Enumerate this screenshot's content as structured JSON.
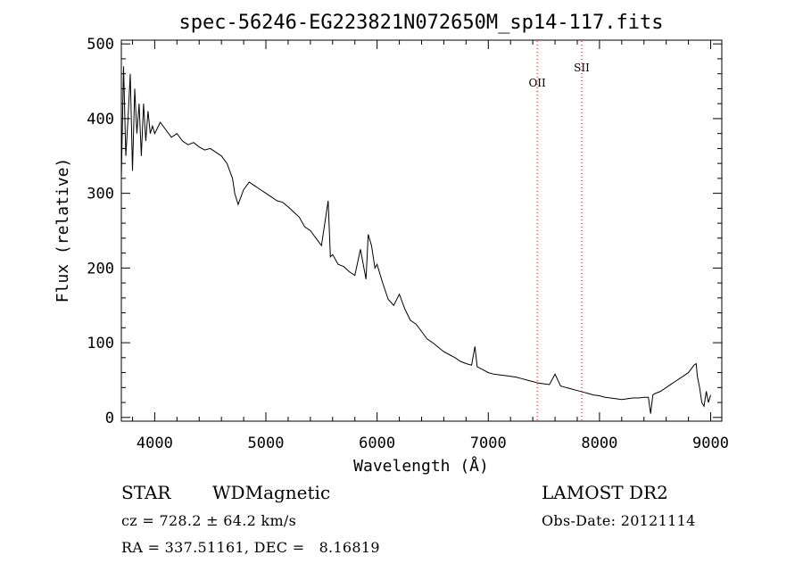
{
  "chart_data": {
    "type": "line",
    "title": "spec-56246-EG223821N072650M_sp14-117.fits",
    "xlabel": "Wavelength (Å)",
    "ylabel": "Flux (relative)",
    "xlim": [
      3700,
      9100
    ],
    "ylim": [
      -5,
      505
    ],
    "x_ticks": [
      4000,
      5000,
      6000,
      7000,
      8000,
      9000
    ],
    "y_ticks": [
      0,
      100,
      200,
      300,
      400,
      500
    ],
    "grid": false,
    "line_color": "#000000",
    "series": [
      {
        "x": [
          3700,
          3720,
          3740,
          3760,
          3780,
          3800,
          3820,
          3840,
          3860,
          3880,
          3900,
          3920,
          3940,
          3960,
          3980,
          4000,
          4050,
          4100,
          4150,
          4200,
          4250,
          4300,
          4350,
          4400,
          4450,
          4500,
          4550,
          4600,
          4650,
          4700,
          4720,
          4750,
          4800,
          4850,
          4900,
          4950,
          5000,
          5050,
          5100,
          5150,
          5200,
          5250,
          5300,
          5350,
          5400,
          5450,
          5500,
          5560,
          5580,
          5600,
          5650,
          5700,
          5750,
          5800,
          5850,
          5900,
          5920,
          5950,
          5980,
          6000,
          6050,
          6100,
          6150,
          6200,
          6250,
          6300,
          6350,
          6400,
          6450,
          6500,
          6550,
          6600,
          6650,
          6700,
          6750,
          6800,
          6850,
          6880,
          6900,
          6950,
          7000,
          7050,
          7100,
          7150,
          7200,
          7250,
          7300,
          7350,
          7400,
          7450,
          7500,
          7550,
          7600,
          7650,
          7700,
          7750,
          7800,
          7850,
          7900,
          7950,
          8000,
          8050,
          8100,
          8150,
          8200,
          8250,
          8300,
          8350,
          8400,
          8440,
          8460,
          8480,
          8500,
          8550,
          8600,
          8650,
          8700,
          8750,
          8800,
          8850,
          8870,
          8880,
          8900,
          8920,
          8940,
          8960,
          8980,
          9000
        ],
        "y": [
          320,
          470,
          350,
          400,
          460,
          330,
          440,
          380,
          420,
          350,
          420,
          370,
          410,
          380,
          390,
          380,
          395,
          385,
          375,
          380,
          370,
          365,
          368,
          362,
          358,
          360,
          355,
          350,
          340,
          320,
          300,
          285,
          305,
          315,
          310,
          305,
          300,
          295,
          290,
          288,
          282,
          275,
          268,
          255,
          250,
          240,
          230,
          290,
          215,
          218,
          205,
          202,
          195,
          190,
          225,
          185,
          245,
          230,
          200,
          205,
          180,
          158,
          150,
          165,
          145,
          130,
          125,
          115,
          105,
          100,
          94,
          88,
          84,
          80,
          75,
          72,
          70,
          95,
          68,
          64,
          60,
          58,
          57,
          56,
          55,
          54,
          52,
          50,
          48,
          46,
          45,
          44,
          58,
          42,
          40,
          38,
          36,
          34,
          32,
          30,
          29,
          27,
          26,
          25,
          24,
          25,
          26,
          26,
          27,
          27,
          5,
          30,
          32,
          35,
          40,
          45,
          50,
          55,
          60,
          70,
          72,
          55,
          40,
          20,
          15,
          35,
          20,
          30
        ]
      }
    ],
    "vlines": [
      {
        "x": 7440,
        "label": "OII"
      },
      {
        "x": 7840,
        "label": "SII"
      }
    ]
  },
  "info": {
    "object_type": "STAR",
    "subclass": "WDMagnetic",
    "survey": "LAMOST DR2",
    "redshift": "cz = 728.2 ± 64.2 km/s",
    "obs_date": "Obs-Date: 20121114",
    "coords": "RA = 337.51161, DEC =   8.16819"
  }
}
